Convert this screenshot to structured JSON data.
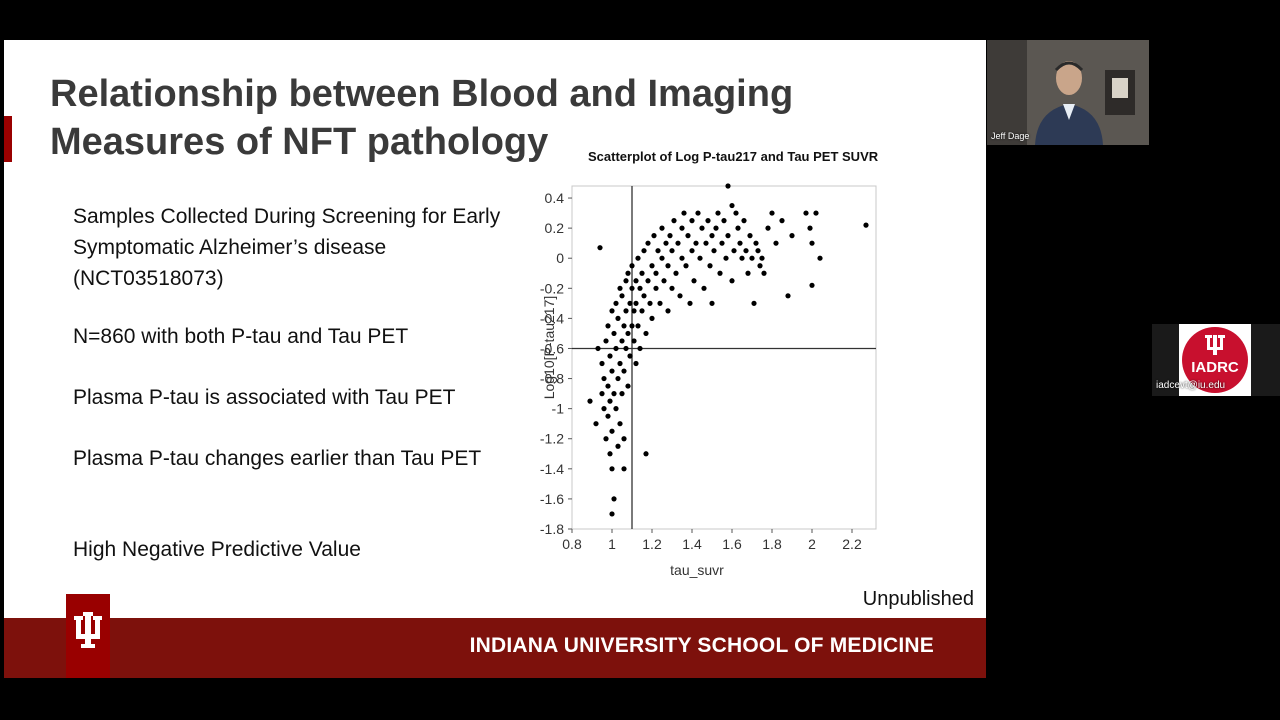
{
  "slide": {
    "title_lines": [
      "Relationship between Blood and Imaging",
      "Measures of NFT pathology"
    ],
    "bullets": [
      "Samples Collected During Screening for Early Symptomatic Alzheimer’s disease (NCT03518073)",
      "N=860 with both P-tau and Tau PET",
      "Plasma P-tau is associated with Tau PET",
      "Plasma P-tau changes earlier than Tau PET",
      "High Negative Predictive Value"
    ],
    "note": "Unpublished",
    "footer": "INDIANA UNIVERSITY SCHOOL OF MEDICINE"
  },
  "chart_data": {
    "type": "scatter",
    "title": "Scatterplot of Log P-tau217 and Tau PET SUVR",
    "xlabel": "tau_suvr",
    "ylabel": "Log10[P-tau217]",
    "xlim": [
      0.8,
      2.32
    ],
    "ylim": [
      -1.8,
      0.48
    ],
    "xticks": [
      "0.8",
      "1",
      "1.2",
      "1.4",
      "1.6",
      "1.8",
      "2",
      "2.2"
    ],
    "yticks": [
      "0.4",
      "0.2",
      "0",
      "-0.2",
      "-0.4",
      "-0.6",
      "-0.8",
      "-1",
      "-1.2",
      "-1.4",
      "-1.6",
      "-1.8"
    ],
    "reference_lines": {
      "x": 1.1,
      "y": -0.6
    },
    "grid": false,
    "point_color": "#000000",
    "points": [
      [
        0.89,
        -0.95
      ],
      [
        0.92,
        -1.1
      ],
      [
        0.93,
        -0.6
      ],
      [
        0.95,
        -0.9
      ],
      [
        0.95,
        -0.7
      ],
      [
        0.96,
        -1.0
      ],
      [
        0.96,
        -0.8
      ],
      [
        0.97,
        -0.55
      ],
      [
        0.97,
        -1.2
      ],
      [
        0.98,
        -0.85
      ],
      [
        0.98,
        -0.45
      ],
      [
        0.98,
        -1.05
      ],
      [
        0.99,
        -0.65
      ],
      [
        0.99,
        -0.95
      ],
      [
        1.0,
        -0.75
      ],
      [
        1.0,
        -1.4
      ],
      [
        1.0,
        -0.35
      ],
      [
        1.0,
        -1.15
      ],
      [
        1.01,
        -0.5
      ],
      [
        1.01,
        -0.9
      ],
      [
        1.01,
        -1.6
      ],
      [
        1.02,
        -0.6
      ],
      [
        1.02,
        -0.3
      ],
      [
        1.02,
        -1.0
      ],
      [
        1.03,
        -0.8
      ],
      [
        1.03,
        -1.25
      ],
      [
        1.03,
        -0.4
      ],
      [
        1.04,
        -0.7
      ],
      [
        1.04,
        -0.2
      ],
      [
        1.04,
        -1.1
      ],
      [
        1.05,
        -0.55
      ],
      [
        1.05,
        -0.9
      ],
      [
        1.05,
        -0.25
      ],
      [
        1.06,
        -0.45
      ],
      [
        1.06,
        -0.75
      ],
      [
        1.06,
        -1.2
      ],
      [
        1.07,
        -0.35
      ],
      [
        1.07,
        -0.6
      ],
      [
        1.07,
        -0.15
      ],
      [
        1.08,
        -0.5
      ],
      [
        1.08,
        -0.85
      ],
      [
        1.08,
        -0.1
      ],
      [
        1.09,
        -0.3
      ],
      [
        1.09,
        -0.65
      ],
      [
        1.1,
        -0.2
      ],
      [
        1.1,
        -0.45
      ],
      [
        1.1,
        -0.05
      ],
      [
        1.11,
        -0.35
      ],
      [
        1.11,
        -0.55
      ],
      [
        1.12,
        -0.15
      ],
      [
        1.12,
        -0.3
      ],
      [
        1.13,
        -0.45
      ],
      [
        1.13,
        0.0
      ],
      [
        1.14,
        -0.2
      ],
      [
        1.14,
        -0.6
      ],
      [
        1.15,
        -0.1
      ],
      [
        1.15,
        -0.35
      ],
      [
        1.16,
        0.05
      ],
      [
        1.16,
        -0.25
      ],
      [
        1.17,
        -0.5
      ],
      [
        1.18,
        -0.15
      ],
      [
        1.18,
        0.1
      ],
      [
        1.19,
        -0.3
      ],
      [
        1.2,
        -0.05
      ],
      [
        1.2,
        -0.4
      ],
      [
        1.21,
        0.15
      ],
      [
        1.22,
        -0.2
      ],
      [
        1.22,
        -0.1
      ],
      [
        1.23,
        0.05
      ],
      [
        1.24,
        -0.3
      ],
      [
        1.25,
        0.0
      ],
      [
        1.25,
        0.2
      ],
      [
        1.26,
        -0.15
      ],
      [
        1.27,
        0.1
      ],
      [
        1.28,
        -0.05
      ],
      [
        1.28,
        -0.35
      ],
      [
        1.29,
        0.15
      ],
      [
        1.3,
        -0.2
      ],
      [
        1.3,
        0.05
      ],
      [
        1.31,
        0.25
      ],
      [
        1.32,
        -0.1
      ],
      [
        1.33,
        0.1
      ],
      [
        1.34,
        -0.25
      ],
      [
        1.35,
        0.0
      ],
      [
        1.35,
        0.2
      ],
      [
        1.36,
        0.3
      ],
      [
        1.37,
        -0.05
      ],
      [
        1.38,
        0.15
      ],
      [
        1.39,
        -0.3
      ],
      [
        1.4,
        0.05
      ],
      [
        1.4,
        0.25
      ],
      [
        1.41,
        -0.15
      ],
      [
        1.42,
        0.1
      ],
      [
        1.43,
        0.3
      ],
      [
        1.44,
        0.0
      ],
      [
        1.45,
        0.2
      ],
      [
        1.46,
        -0.2
      ],
      [
        1.47,
        0.1
      ],
      [
        1.48,
        0.25
      ],
      [
        1.49,
        -0.05
      ],
      [
        1.5,
        0.15
      ],
      [
        1.5,
        -0.3
      ],
      [
        1.51,
        0.05
      ],
      [
        1.52,
        0.2
      ],
      [
        1.53,
        0.3
      ],
      [
        1.54,
        -0.1
      ],
      [
        1.55,
        0.1
      ],
      [
        1.56,
        0.25
      ],
      [
        1.57,
        0.0
      ],
      [
        1.58,
        0.48
      ],
      [
        1.58,
        0.15
      ],
      [
        1.6,
        0.35
      ],
      [
        1.6,
        -0.15
      ],
      [
        1.61,
        0.05
      ],
      [
        1.62,
        0.3
      ],
      [
        1.63,
        0.2
      ],
      [
        1.64,
        0.1
      ],
      [
        1.65,
        0.0
      ],
      [
        1.66,
        0.25
      ],
      [
        1.67,
        0.05
      ],
      [
        1.68,
        -0.1
      ],
      [
        1.69,
        0.15
      ],
      [
        1.7,
        0.0
      ],
      [
        1.71,
        -0.3
      ],
      [
        1.72,
        0.1
      ],
      [
        1.73,
        0.05
      ],
      [
        1.74,
        -0.05
      ],
      [
        1.75,
        0.0
      ],
      [
        1.76,
        -0.1
      ],
      [
        1.78,
        0.2
      ],
      [
        1.8,
        0.3
      ],
      [
        1.82,
        0.1
      ],
      [
        1.85,
        0.25
      ],
      [
        1.88,
        -0.25
      ],
      [
        1.9,
        0.15
      ],
      [
        1.97,
        0.3
      ],
      [
        1.99,
        0.2
      ],
      [
        2.0,
        0.1
      ],
      [
        2.0,
        -0.18
      ],
      [
        2.02,
        0.3
      ],
      [
        2.04,
        0.0
      ],
      [
        2.27,
        0.22
      ],
      [
        1.17,
        -1.3
      ],
      [
        1.0,
        -1.7
      ],
      [
        0.94,
        0.07
      ],
      [
        1.06,
        -1.4
      ],
      [
        0.99,
        -1.3
      ],
      [
        1.12,
        -0.7
      ]
    ]
  },
  "webcam": {
    "name": "Jeff Dage"
  },
  "tile": {
    "logo_text": "IADRC",
    "email": "iadcevt@iu.edu"
  },
  "colors": {
    "iu_crimson": "#990000",
    "footer_bar": "#7d110c",
    "iadrc_red": "#c8102e"
  }
}
